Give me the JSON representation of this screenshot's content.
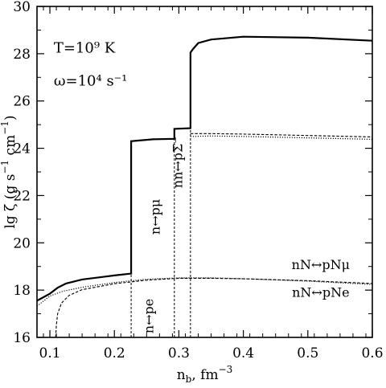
{
  "chart_data": {
    "type": "line",
    "xlabel": "n_b, fm^-3",
    "ylabel": "lg ζ  (g s^-1 cm^-1)",
    "xlim": [
      0.08,
      0.6
    ],
    "ylim": [
      16,
      30
    ],
    "x_ticks": [
      0.1,
      0.2,
      0.3,
      0.4,
      0.5,
      0.6
    ],
    "x_tick_labels": [
      "0.1",
      "0.2",
      "0.3",
      "0.4",
      "0.5",
      "0.6"
    ],
    "y_ticks": [
      16,
      18,
      20,
      22,
      24,
      26,
      28,
      30
    ],
    "y_tick_labels": [
      "16",
      "18",
      "20",
      "22",
      "24",
      "26",
      "28",
      "30"
    ],
    "grid": false,
    "params": {
      "temperature": "T=10⁹ K",
      "frequency": "ω=10⁴ s⁻¹"
    },
    "series": [
      {
        "style": "solid-thick",
        "points": [
          [
            0.08,
            17.55
          ],
          [
            0.1,
            17.85
          ],
          [
            0.112,
            18.1
          ],
          [
            0.125,
            18.28
          ],
          [
            0.15,
            18.45
          ],
          [
            0.2,
            18.62
          ],
          [
            0.226,
            18.7
          ],
          [
            0.226,
            24.3
          ],
          [
            0.26,
            24.38
          ],
          [
            0.293,
            24.4
          ],
          [
            0.293,
            24.82
          ],
          [
            0.318,
            24.85
          ],
          [
            0.318,
            28.05
          ],
          [
            0.322,
            28.2
          ],
          [
            0.33,
            28.45
          ],
          [
            0.35,
            28.6
          ],
          [
            0.4,
            28.72
          ],
          [
            0.5,
            28.68
          ],
          [
            0.6,
            28.55
          ]
        ]
      },
      {
        "style": "dashed",
        "points": [
          [
            0.109,
            16.0
          ],
          [
            0.11,
            16.5
          ],
          [
            0.112,
            17.0
          ],
          [
            0.118,
            17.45
          ],
          [
            0.13,
            17.78
          ],
          [
            0.15,
            18.02
          ],
          [
            0.2,
            18.27
          ],
          [
            0.25,
            18.42
          ],
          [
            0.3,
            18.5
          ],
          [
            0.35,
            18.5
          ],
          [
            0.4,
            18.48
          ],
          [
            0.5,
            18.4
          ],
          [
            0.6,
            18.28
          ]
        ]
      },
      {
        "style": "dotted",
        "points": [
          [
            0.08,
            17.32
          ],
          [
            0.1,
            17.75
          ],
          [
            0.12,
            17.95
          ],
          [
            0.15,
            18.12
          ],
          [
            0.2,
            18.32
          ],
          [
            0.25,
            18.46
          ],
          [
            0.3,
            18.52
          ],
          [
            0.35,
            18.52
          ],
          [
            0.4,
            18.48
          ],
          [
            0.5,
            18.38
          ],
          [
            0.6,
            18.24
          ]
        ]
      },
      {
        "style": "dashed",
        "points": [
          [
            0.318,
            24.62
          ],
          [
            0.35,
            24.62
          ],
          [
            0.4,
            24.6
          ],
          [
            0.5,
            24.54
          ],
          [
            0.6,
            24.48
          ]
        ]
      },
      {
        "style": "dotted",
        "points": [
          [
            0.318,
            24.5
          ],
          [
            0.35,
            24.52
          ],
          [
            0.4,
            24.5
          ],
          [
            0.5,
            24.44
          ],
          [
            0.6,
            24.38
          ]
        ]
      }
    ],
    "thresholds": [
      {
        "x": 0.226,
        "y_top": 18.7
      },
      {
        "x": 0.293,
        "y_top": 24.82
      },
      {
        "x": 0.318,
        "y_top": 28.0
      }
    ],
    "annotations": [
      {
        "id": "n-pe",
        "text": "n↔pe",
        "x": 0.26,
        "y": 16.9,
        "rotate": true
      },
      {
        "id": "n-pmu",
        "text": "n↔pμ",
        "x": 0.27,
        "y": 21.1,
        "rotate": true
      },
      {
        "id": "nn-psigma",
        "text": "nn↔pΣ⁻",
        "x": 0.305,
        "y": 23.4,
        "rotate": true
      },
      {
        "id": "nN-pNmu",
        "text": "nN↔pNμ",
        "x": 0.52,
        "y": 18.88,
        "rotate": false
      },
      {
        "id": "nN-pNe",
        "text": "nN↔pNe",
        "x": 0.52,
        "y": 17.72,
        "rotate": false
      }
    ]
  }
}
